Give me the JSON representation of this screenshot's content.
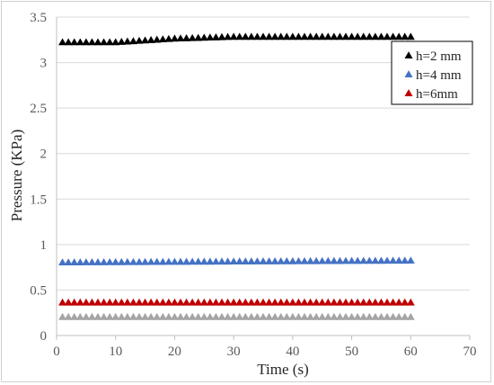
{
  "chart_data": {
    "type": "scatter",
    "title": "",
    "xlabel": "Time (s)",
    "ylabel": "Pressure (KPa)",
    "xlim": [
      0,
      70
    ],
    "ylim": [
      0,
      3.5
    ],
    "x_ticks": [
      "0",
      "10",
      "20",
      "30",
      "40",
      "50",
      "60",
      "70"
    ],
    "y_ticks": [
      "0",
      "0.5",
      "1",
      "1.5",
      "2",
      "2.5",
      "3",
      "3.5"
    ],
    "grid": "horizontal",
    "legend_position": "top-right",
    "marker": "triangle",
    "x_start": 1,
    "x_end": 60,
    "x_step": 1,
    "series": [
      {
        "name": "h=2 mm",
        "color": "#000000",
        "points": [
          [
            1,
            3.22
          ],
          [
            10,
            3.22
          ],
          [
            15,
            3.24
          ],
          [
            20,
            3.26
          ],
          [
            25,
            3.27
          ],
          [
            30,
            3.28
          ],
          [
            40,
            3.28
          ],
          [
            50,
            3.28
          ],
          [
            60,
            3.28
          ]
        ]
      },
      {
        "name": "h=4 mm",
        "color": "#4472c4",
        "points": [
          [
            1,
            0.8
          ],
          [
            30,
            0.81
          ],
          [
            60,
            0.82
          ]
        ]
      },
      {
        "name": "h=6mm",
        "color": "#c00000",
        "points": [
          [
            1,
            0.36
          ],
          [
            60,
            0.36
          ]
        ]
      },
      {
        "name": "",
        "color": "#a5a5a5",
        "points": [
          [
            1,
            0.2
          ],
          [
            60,
            0.2
          ]
        ]
      }
    ]
  }
}
